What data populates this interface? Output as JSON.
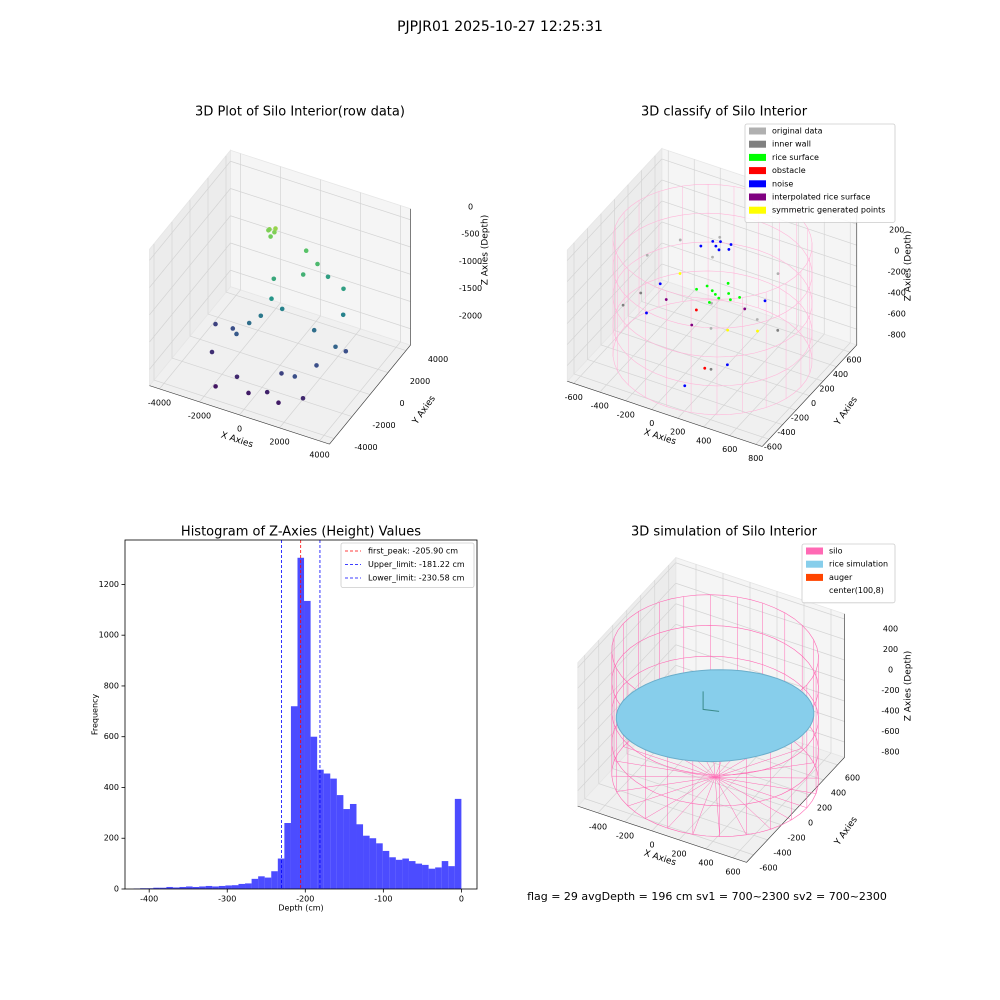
{
  "title": "PJPJR01 2025-10-27 12:25:31",
  "footer": "flag = 29  avgDepth = 196 cm  sv1 = 700~2300  sv2 = 700~2300",
  "chart_data": [
    {
      "type": "scatter3d",
      "title": "3D Plot of Silo Interior(row data)",
      "xlabel": "X Axies",
      "ylabel": "Y Axies",
      "zlabel": "Z Axies (Depth)",
      "colormap": "viridis",
      "xlim": [
        -4500,
        4500
      ],
      "ylim": [
        -4500,
        4500
      ],
      "zlim": [
        -2300,
        200
      ],
      "xticks": [
        -4000,
        -2000,
        0,
        2000,
        4000
      ],
      "yticks": [
        -4000,
        -2000,
        0,
        2000,
        4000
      ],
      "zticks": [
        0,
        -500,
        -1000,
        -1500,
        -2000
      ],
      "series": [
        {
          "x": [
            -1200,
            -1000,
            -1100,
            -900,
            -1300,
            500,
            1200,
            800,
            -400,
            1500,
            2500,
            -200,
            200,
            -600,
            1800,
            2800,
            3000,
            -1000,
            -1500,
            2500,
            3200,
            -2000,
            1200,
            2000,
            -800,
            0,
            800,
            -2500,
            1500,
            2500,
            -1600,
            -3000
          ],
          "y": [
            1500,
            1600,
            1400,
            1500,
            1600,
            1800,
            1500,
            800,
            200,
            2000,
            1500,
            -500,
            -200,
            -800,
            -200,
            800,
            -500,
            -1200,
            -1500,
            -1500,
            200,
            -800,
            -2500,
            -2800,
            -3000,
            -3500,
            -3200,
            -2000,
            -3500,
            -3000,
            -3600,
            -500
          ],
          "z": [
            -250,
            -300,
            -350,
            -200,
            -300,
            -500,
            -600,
            -700,
            -800,
            -900,
            -900,
            -1000,
            -1200,
            -1300,
            -1400,
            -1200,
            -1500,
            -1400,
            -1600,
            -1700,
            -1700,
            -1700,
            -1800,
            -1700,
            -2000,
            -2100,
            -2050,
            -1950,
            -2100,
            -2000,
            -2150,
            -1800
          ]
        }
      ]
    },
    {
      "type": "scatter3d",
      "title": "3D classify of Silo Interior",
      "xlabel": "X Axies",
      "ylabel": "Y Axies",
      "zlabel": "Z Axies (Depth)",
      "legend": "upper right",
      "xlim": [
        -650,
        850
      ],
      "ylim": [
        -700,
        700
      ],
      "zlim": [
        -950,
        300
      ],
      "xticks": [
        -600,
        -400,
        -200,
        0,
        200,
        400,
        600,
        800
      ],
      "yticks": [
        -600,
        -400,
        -200,
        0,
        200,
        400,
        600
      ],
      "zticks": [
        200,
        0,
        -200,
        -400,
        -600,
        -800
      ],
      "series": [
        {
          "name": "original data",
          "color": "#b0b0b0",
          "x": [
            -300,
            200,
            400,
            -100,
            500,
            -450,
            300,
            0
          ],
          "y": [
            300,
            -200,
            400,
            500,
            -100,
            100,
            -400,
            200
          ],
          "z": [
            -150,
            -200,
            -250,
            -180,
            -300,
            -220,
            -260,
            -120
          ]
        },
        {
          "name": "inner wall",
          "color": "#808080",
          "x": [
            -500,
            -480,
            450,
            300
          ],
          "y": [
            100,
            -200,
            300,
            -400
          ],
          "z": [
            -600,
            -500,
            -700,
            -650
          ]
        },
        {
          "name": "rice surface",
          "color": "#00ff00",
          "x": [
            50,
            100,
            150,
            0,
            200,
            80,
            120,
            -50,
            250,
            100
          ],
          "y": [
            100,
            50,
            150,
            120,
            80,
            0,
            200,
            60,
            120,
            100
          ],
          "z": [
            -350,
            -330,
            -370,
            -340,
            -360,
            -380,
            -320,
            -350,
            -345,
            -400
          ]
        },
        {
          "name": "obstacle",
          "color": "#ff0000",
          "x": [
            200,
            -150
          ],
          "y": [
            -300,
            250
          ],
          "z": [
            -750,
            -720
          ]
        },
        {
          "name": "noise",
          "color": "#0000ff",
          "x": [
            0,
            50,
            -50,
            100,
            -100,
            20,
            80,
            -300,
            400,
            -350,
            300,
            150
          ],
          "y": [
            250,
            200,
            300,
            250,
            220,
            280,
            320,
            -200,
            -350,
            100,
            400,
            -500
          ],
          "z": [
            -50,
            -30,
            -60,
            -40,
            -70,
            -20,
            -50,
            -500,
            -600,
            -450,
            -550,
            -800
          ]
        },
        {
          "name": "interpolated rice surface",
          "color": "#800080",
          "x": [
            -200,
            300,
            100
          ],
          "y": [
            -100,
            100,
            -300
          ],
          "z": [
            -400,
            -420,
            -380
          ]
        },
        {
          "name": "symmetric generated points",
          "color": "#ffff00",
          "x": [
            350,
            -250,
            450
          ],
          "y": [
            -250,
            200,
            0
          ],
          "z": [
            -360,
            -380,
            -500
          ]
        }
      ]
    },
    {
      "type": "histogram",
      "title": "Histogram of Z-Axies (Height) Values",
      "xlabel": "Depth (cm)",
      "ylabel": "Frequency",
      "color": "#0000ff",
      "alpha": 0.7,
      "legend": "upper right",
      "xlim": [
        -431,
        20
      ],
      "ylim": [
        0,
        1375
      ],
      "xticks": [
        -400,
        -300,
        -200,
        -100,
        0
      ],
      "yticks": [
        0,
        200,
        400,
        600,
        800,
        1000,
        1200
      ],
      "bins": [
        -420,
        -411.6,
        -403.2,
        -394.8,
        -386.4,
        -378,
        -369.6,
        -361.2,
        -352.8,
        -344.4,
        -336,
        -327.6,
        -319.2,
        -310.8,
        -302.4,
        -294,
        -285.6,
        -277.2,
        -268.8,
        -260.4,
        -252,
        -243.6,
        -235.2,
        -226.8,
        -218.4,
        -210,
        -201.6,
        -193.2,
        -184.8,
        -176.4,
        -168,
        -159.6,
        -151.2,
        -142.8,
        -134.4,
        -126,
        -117.6,
        -109.2,
        -100.8,
        -92.4,
        -84,
        -75.6,
        -67.2,
        -58.8,
        -50.4,
        -42,
        -33.6,
        -25.2,
        -16.8,
        -8.4,
        0
      ],
      "values": [
        2,
        3,
        3,
        5,
        5,
        8,
        6,
        8,
        10,
        8,
        10,
        12,
        10,
        12,
        14,
        15,
        20,
        22,
        40,
        50,
        45,
        70,
        120,
        260,
        720,
        1305,
        1135,
        600,
        470,
        455,
        435,
        370,
        315,
        335,
        255,
        210,
        200,
        180,
        150,
        125,
        115,
        120,
        110,
        100,
        95,
        80,
        85,
        110,
        90,
        355
      ],
      "vlines": [
        {
          "name": "first_peak: -205.90 cm",
          "value": -205.9,
          "color": "#ff0000"
        },
        {
          "name": "Upper_limit: -181.22 cm",
          "value": -181.22,
          "color": "#0000ff"
        },
        {
          "name": "Lower_limit: -230.58 cm",
          "value": -230.58,
          "color": "#0000ff"
        }
      ]
    },
    {
      "type": "surface3d",
      "title": "3D simulation of Silo Interior",
      "xlabel": "X Axies",
      "ylabel": "Y Axies",
      "zlabel": "Z Axies (Depth)",
      "legend": "upper right",
      "xlim": [
        -550,
        700
      ],
      "ylim": [
        -700,
        700
      ],
      "zlim": [
        -950,
        450
      ],
      "xticks": [
        -400,
        -200,
        0,
        200,
        400,
        600
      ],
      "yticks": [
        -600,
        -400,
        -200,
        0,
        200,
        400,
        600
      ],
      "zticks": [
        400,
        200,
        0,
        -200,
        -400,
        -600,
        -800
      ],
      "series": [
        {
          "name": "silo",
          "color": "#ff69b4"
        },
        {
          "name": "rice simulation",
          "color": "#87ceeb"
        },
        {
          "name": "auger",
          "color": "#ff4500"
        },
        {
          "name": "center(100,8)",
          "color": "#ffffff"
        }
      ]
    }
  ]
}
